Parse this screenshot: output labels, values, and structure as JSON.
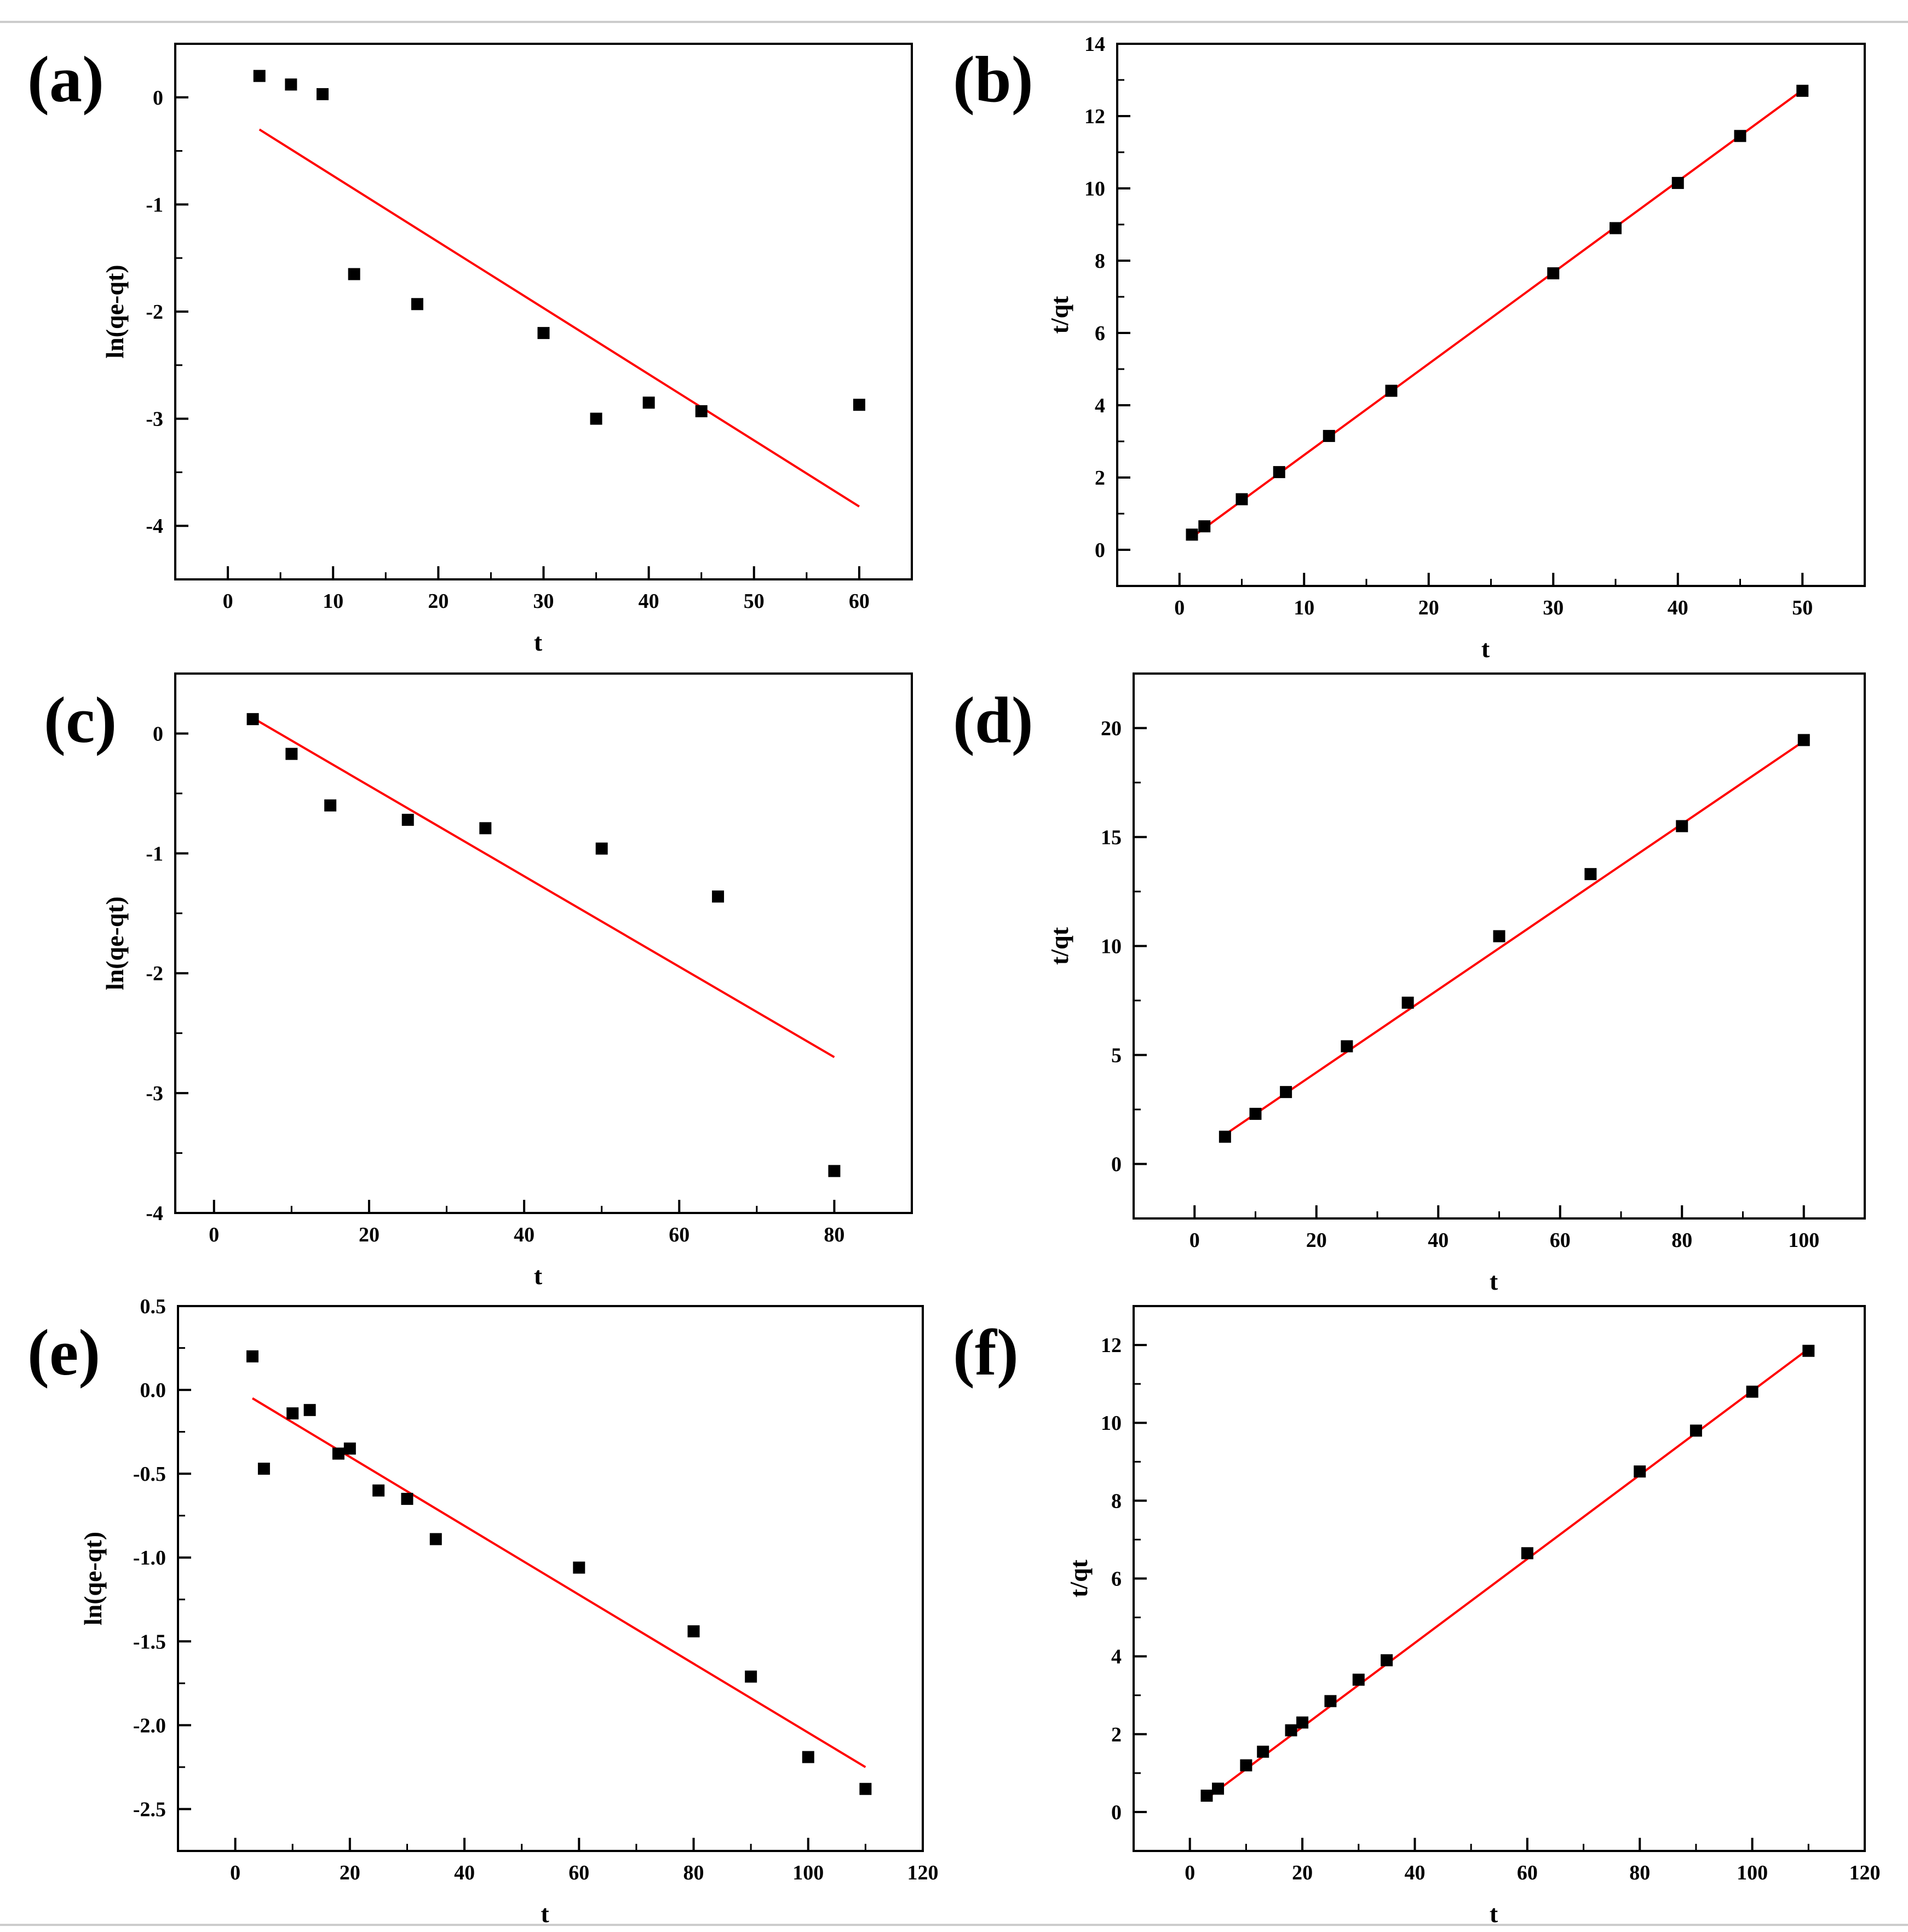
{
  "colors": {
    "frame": "#000000",
    "points": "#000000",
    "fit": "#ff0000",
    "rule": "#cccccc"
  },
  "chart_data": [
    {
      "panel": "(a)",
      "type": "scatter",
      "xlabel": "t",
      "ylabel": "ln(qe-qt)",
      "xlim": [
        -5,
        65
      ],
      "ylim": [
        -4.5,
        0.5
      ],
      "xticks": [
        0,
        10,
        20,
        30,
        40,
        50,
        60
      ],
      "yticks": [
        -4,
        -3,
        -2,
        -1,
        0
      ],
      "tick_decimals": 0,
      "points": {
        "x": [
          3,
          6,
          9,
          12,
          18,
          30,
          35,
          40,
          45,
          60
        ],
        "y": [
          0.2,
          0.12,
          0.03,
          -1.65,
          -1.93,
          -2.2,
          -3.0,
          -2.85,
          -2.93,
          -2.87
        ]
      },
      "fit": {
        "x": [
          3,
          60
        ],
        "y": [
          -0.3,
          -3.82
        ]
      }
    },
    {
      "panel": "(b)",
      "type": "scatter",
      "xlabel": "t",
      "ylabel": "t/qt",
      "xlim": [
        -5,
        55
      ],
      "ylim": [
        -1,
        14
      ],
      "xticks": [
        0,
        10,
        20,
        30,
        40,
        50
      ],
      "yticks": [
        0,
        2,
        4,
        6,
        8,
        10,
        12,
        14
      ],
      "tick_decimals": 0,
      "points": {
        "x": [
          1,
          2,
          5,
          8,
          12,
          17,
          30,
          35,
          40,
          45,
          50
        ],
        "y": [
          0.42,
          0.65,
          1.4,
          2.15,
          3.15,
          4.4,
          7.65,
          8.9,
          10.15,
          11.45,
          12.7
        ]
      },
      "fit": {
        "x": [
          1,
          50
        ],
        "y": [
          0.35,
          12.72
        ]
      }
    },
    {
      "panel": "(c)",
      "type": "scatter",
      "xlabel": "t",
      "ylabel": "ln(qe-qt)",
      "xlim": [
        -5,
        90
      ],
      "ylim": [
        -4,
        0.5
      ],
      "xticks": [
        0,
        20,
        40,
        60,
        80
      ],
      "yticks": [
        -4,
        -3,
        -2,
        -1,
        0
      ],
      "tick_decimals": 0,
      "points": {
        "x": [
          5,
          10,
          15,
          25,
          35,
          50,
          65,
          80
        ],
        "y": [
          0.12,
          -0.17,
          -0.6,
          -0.72,
          -0.79,
          -0.96,
          -1.36,
          -3.65
        ]
      },
      "fit": {
        "x": [
          5,
          80
        ],
        "y": [
          0.13,
          -2.7
        ]
      }
    },
    {
      "panel": "(d)",
      "type": "scatter",
      "xlabel": "t",
      "ylabel": "t/qt",
      "xlim": [
        -10,
        110
      ],
      "ylim": [
        -2.5,
        22.5
      ],
      "xticks": [
        0,
        20,
        40,
        60,
        80,
        100
      ],
      "yticks": [
        0,
        5,
        10,
        15,
        20
      ],
      "tick_decimals": 0,
      "points": {
        "x": [
          5,
          10,
          15,
          25,
          35,
          50,
          65,
          80,
          100
        ],
        "y": [
          1.25,
          2.3,
          3.3,
          5.4,
          7.4,
          10.45,
          13.3,
          15.5,
          19.45
        ]
      },
      "fit": {
        "x": [
          5,
          100
        ],
        "y": [
          1.35,
          19.4
        ]
      }
    },
    {
      "panel": "(e)",
      "type": "scatter",
      "xlabel": "t",
      "ylabel": "ln(qe-qt)",
      "xlim": [
        -10,
        120
      ],
      "ylim": [
        -2.75,
        0.5
      ],
      "xticks": [
        0,
        20,
        40,
        60,
        80,
        100,
        120
      ],
      "yticks": [
        0.5,
        0.0,
        -0.5,
        -1.0,
        -1.5,
        -2.0,
        -2.5
      ],
      "tick_decimals": 1,
      "points": {
        "x": [
          3,
          5,
          10,
          13,
          18,
          20,
          25,
          30,
          35,
          60,
          80,
          90,
          100,
          110
        ],
        "y": [
          0.2,
          -0.47,
          -0.14,
          -0.12,
          -0.38,
          -0.35,
          -0.6,
          -0.65,
          -0.89,
          -1.06,
          -1.44,
          -1.71,
          -2.19,
          -2.38
        ]
      },
      "fit": {
        "x": [
          3,
          110
        ],
        "y": [
          -0.05,
          -2.25
        ]
      }
    },
    {
      "panel": "(f)",
      "type": "scatter",
      "xlabel": "t",
      "ylabel": "t/qt",
      "xlim": [
        -10,
        120
      ],
      "ylim": [
        -1,
        13
      ],
      "xticks": [
        0,
        20,
        40,
        60,
        80,
        100,
        120
      ],
      "yticks": [
        0,
        2,
        4,
        6,
        8,
        10,
        12
      ],
      "tick_decimals": 0,
      "points": {
        "x": [
          3,
          5,
          10,
          13,
          18,
          20,
          25,
          30,
          35,
          60,
          80,
          90,
          100,
          110
        ],
        "y": [
          0.42,
          0.6,
          1.2,
          1.55,
          2.1,
          2.3,
          2.85,
          3.4,
          3.9,
          6.65,
          8.75,
          9.8,
          10.8,
          11.85
        ]
      },
      "fit": {
        "x": [
          3,
          110
        ],
        "y": [
          0.35,
          11.9
        ]
      }
    }
  ]
}
